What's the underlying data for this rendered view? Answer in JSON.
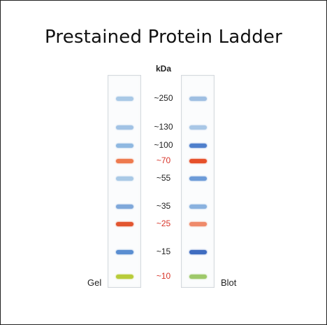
{
  "title": "Prestained Protein Ladder",
  "unit": "kDa",
  "lanes": {
    "left": "Gel",
    "right": "Blot"
  },
  "markers": [
    {
      "label": "~250",
      "kda": 250,
      "color": "#222222"
    },
    {
      "label": "~130",
      "kda": 130,
      "color": "#222222"
    },
    {
      "label": "~100",
      "kda": 100,
      "color": "#222222"
    },
    {
      "label": "~70",
      "kda": 70,
      "color": "#d8352a"
    },
    {
      "label": "~55",
      "kda": 55,
      "color": "#222222"
    },
    {
      "label": "~35",
      "kda": 35,
      "color": "#222222"
    },
    {
      "label": "~25",
      "kda": 25,
      "color": "#d8352a"
    },
    {
      "label": "~15",
      "kda": 15,
      "color": "#222222"
    },
    {
      "label": "~10",
      "kda": 10,
      "color": "#d8352a"
    }
  ],
  "gel_bands": [
    {
      "kda": 250,
      "color": "#a9c9e6"
    },
    {
      "kda": 130,
      "color": "#a2c3e5"
    },
    {
      "kda": 100,
      "color": "#8fb8e1"
    },
    {
      "kda": 70,
      "color": "#ee7a4e"
    },
    {
      "kda": 55,
      "color": "#a9c9e6"
    },
    {
      "kda": 35,
      "color": "#7fa8da"
    },
    {
      "kda": 25,
      "color": "#e2552f"
    },
    {
      "kda": 15,
      "color": "#5a8ed1"
    },
    {
      "kda": 10,
      "color": "#b8cc3a"
    }
  ],
  "blot_bands": [
    {
      "kda": 250,
      "color": "#9fbfe2"
    },
    {
      "kda": 130,
      "color": "#a9c7e6"
    },
    {
      "kda": 100,
      "color": "#4f7fcc"
    },
    {
      "kda": 70,
      "color": "#e6502a"
    },
    {
      "kda": 55,
      "color": "#6d9bd8"
    },
    {
      "kda": 35,
      "color": "#8ab2df"
    },
    {
      "kda": 25,
      "color": "#ef8a6a"
    },
    {
      "kda": 15,
      "color": "#3f6cc0"
    },
    {
      "kda": 10,
      "color": "#9ec96a"
    }
  ]
}
